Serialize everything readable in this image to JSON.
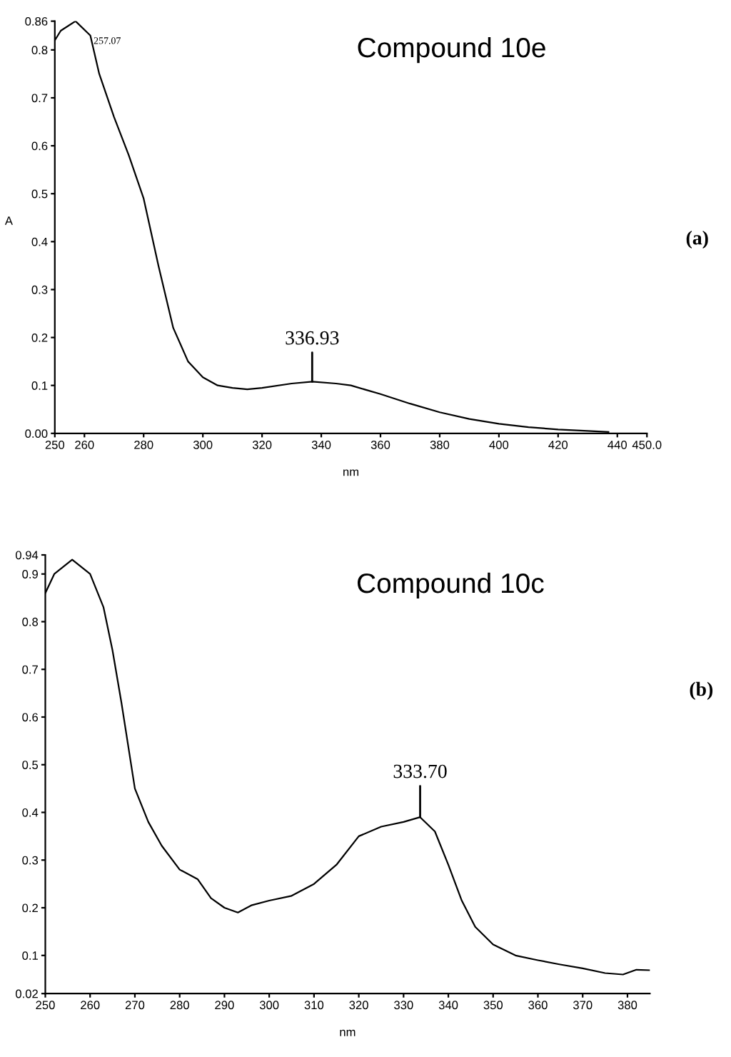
{
  "chart_data": [
    {
      "type": "line",
      "title": "Compound 10e",
      "xlabel": "nm",
      "ylabel": "A",
      "x": [
        250,
        252,
        257,
        262,
        265,
        270,
        275,
        280,
        285,
        290,
        295,
        300,
        305,
        310,
        315,
        320,
        330,
        337,
        345,
        350,
        360,
        370,
        380,
        390,
        400,
        410,
        420,
        430,
        437
      ],
      "series": [
        {
          "color": "#000000",
          "values": [
            0.82,
            0.84,
            0.86,
            0.83,
            0.75,
            0.66,
            0.58,
            0.49,
            0.35,
            0.22,
            0.15,
            0.117,
            0.1,
            0.095,
            0.092,
            0.095,
            0.104,
            0.108,
            0.104,
            0.1,
            0.082,
            0.062,
            0.044,
            0.03,
            0.02,
            0.013,
            0.008,
            0.005,
            0.003
          ]
        }
      ],
      "xlim": [
        250,
        450
      ],
      "xticks": [
        250,
        260,
        280,
        300,
        320,
        340,
        360,
        380,
        400,
        420,
        440,
        {
          "value": 450,
          "label": "450.0"
        }
      ],
      "ylim": [
        0,
        0.86
      ],
      "yticks": [
        {
          "value": 0,
          "label": "0.00"
        },
        0.1,
        0.2,
        0.3,
        0.4,
        0.5,
        0.6,
        0.7,
        0.8,
        0.86
      ],
      "annotations": [
        {
          "text": "257.07",
          "x": 257.07,
          "y": 0.86
        },
        {
          "text": "336.93",
          "x": 336.93,
          "y": 0.108
        },
        "(a)"
      ]
    },
    {
      "type": "line",
      "title": "Compound 10c",
      "xlabel": "nm",
      "x": [
        250,
        252,
        256,
        260,
        263,
        265,
        267,
        270,
        273,
        276,
        280,
        284,
        287,
        290,
        293,
        296,
        300,
        305,
        310,
        315,
        320,
        325,
        330,
        333.7,
        337,
        340,
        343,
        346,
        350,
        355,
        360,
        365,
        370,
        375,
        379,
        382,
        385
      ],
      "series": [
        {
          "color": "#000000",
          "values": [
            0.86,
            0.9,
            0.93,
            0.9,
            0.83,
            0.74,
            0.63,
            0.45,
            0.38,
            0.33,
            0.28,
            0.26,
            0.22,
            0.2,
            0.19,
            0.205,
            0.215,
            0.225,
            0.25,
            0.29,
            0.35,
            0.37,
            0.38,
            0.39,
            0.36,
            0.29,
            0.215,
            0.16,
            0.123,
            0.1,
            0.09,
            0.081,
            0.073,
            0.063,
            0.06,
            0.07,
            0.069
          ]
        }
      ],
      "xlim": [
        250,
        385
      ],
      "xticks": [
        250,
        260,
        270,
        280,
        290,
        300,
        310,
        320,
        330,
        340,
        350,
        360,
        370,
        380
      ],
      "ylim": [
        0.02,
        0.94
      ],
      "yticks": [
        0.02,
        0.1,
        0.2,
        0.3,
        0.4,
        0.5,
        0.6,
        0.7,
        0.8,
        0.9,
        0.94
      ],
      "annotations": [
        {
          "text": "333.70",
          "x": 333.7,
          "y": 0.39
        },
        "(b)"
      ]
    }
  ]
}
